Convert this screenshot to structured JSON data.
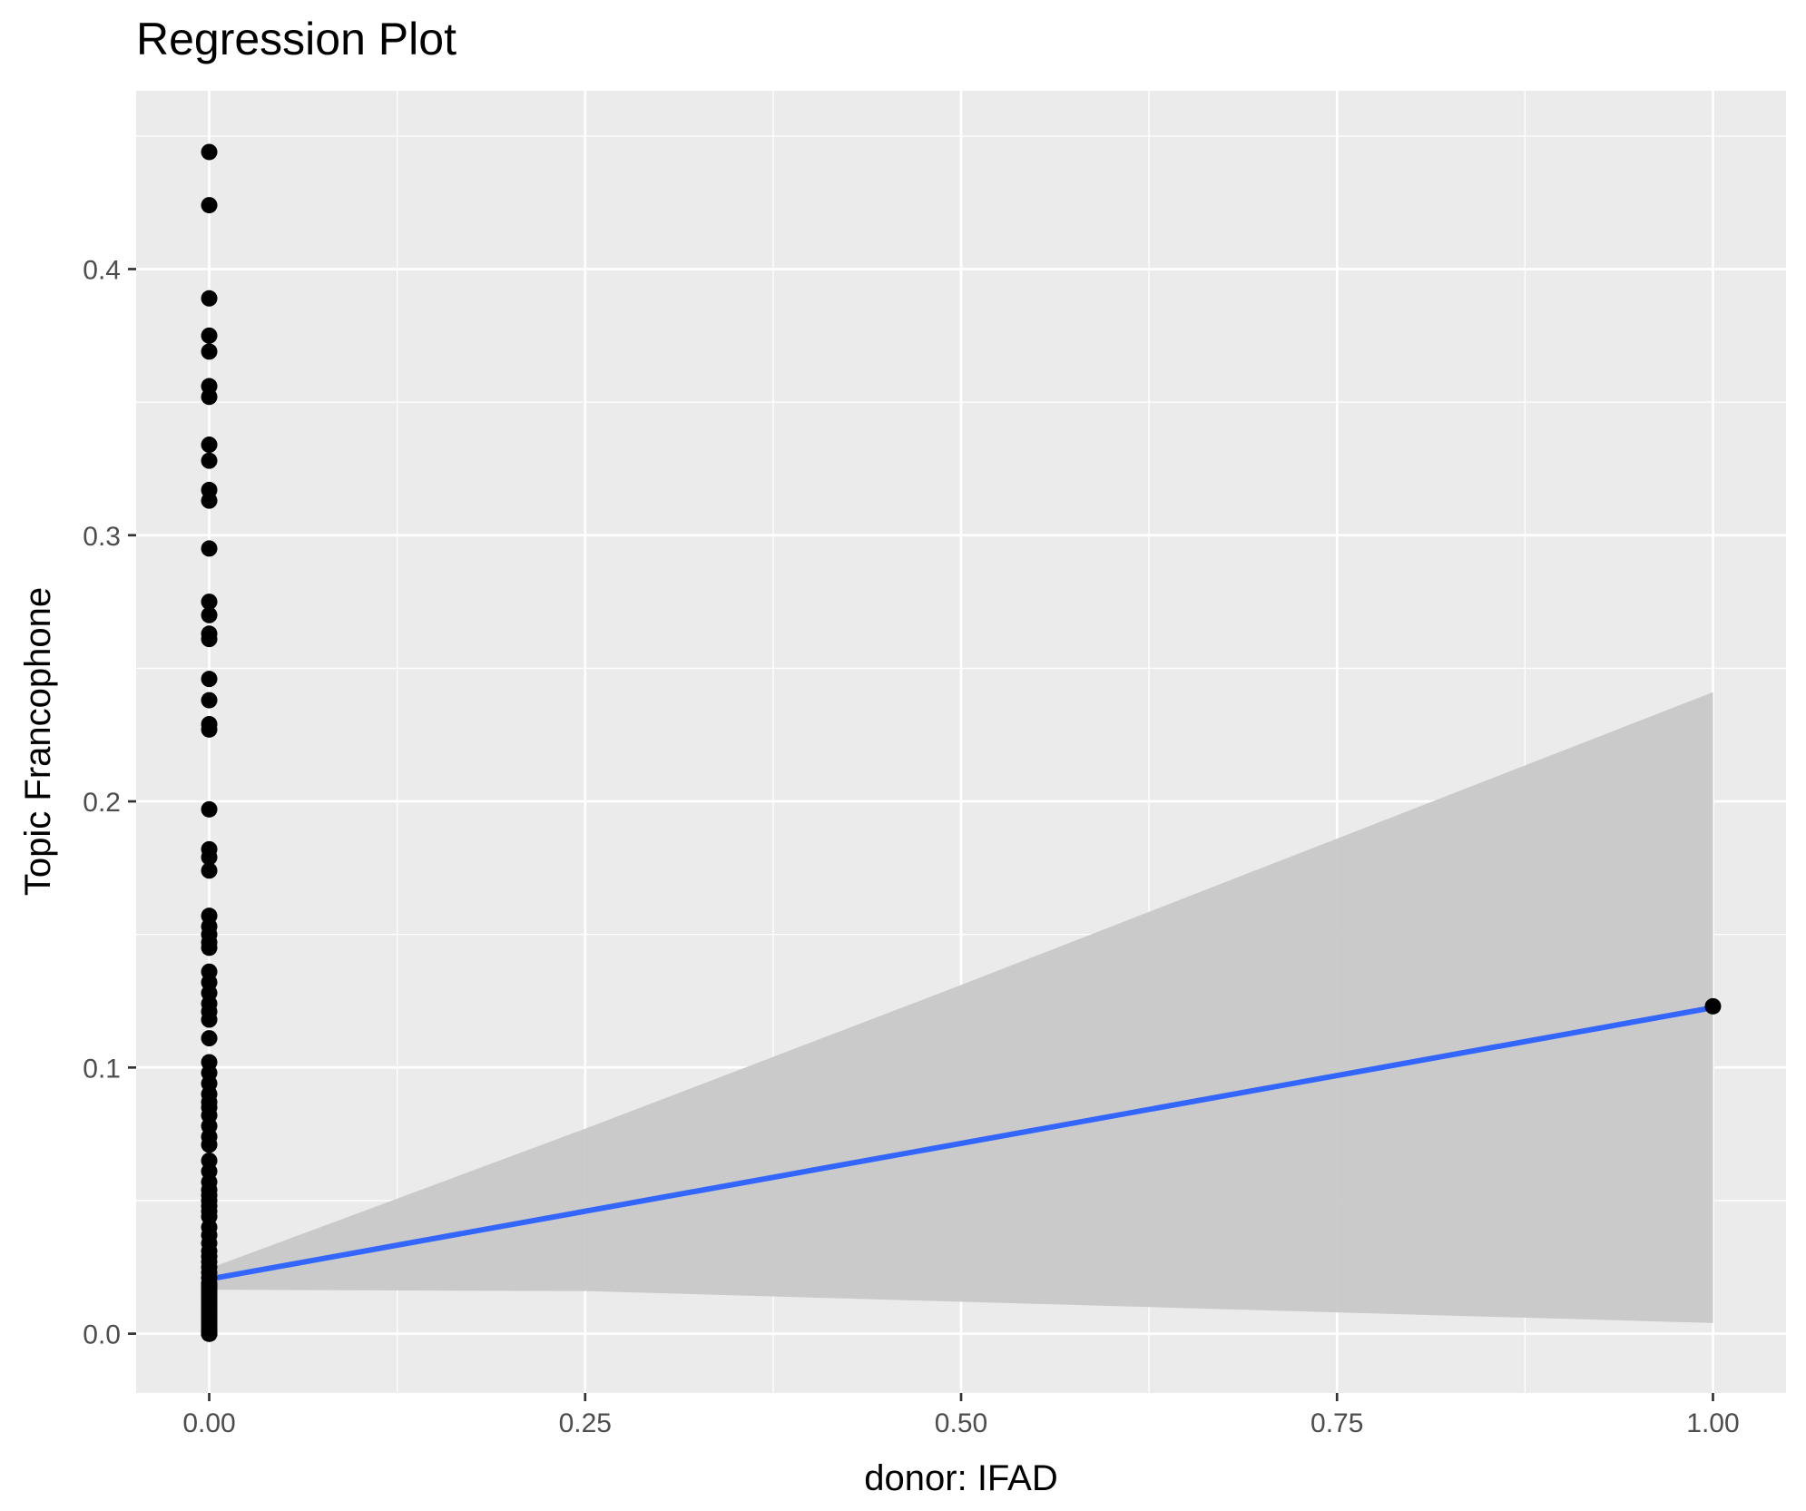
{
  "chart_data": {
    "type": "scatter",
    "title": "Regression Plot",
    "xlabel": "donor: IFAD",
    "ylabel": "Topic Francophone",
    "xlim": [
      -0.0486,
      1.0486
    ],
    "ylim": [
      -0.0223,
      0.467
    ],
    "x_ticks": [
      0.0,
      0.25,
      0.5,
      0.75,
      1.0
    ],
    "x_tick_labels": [
      "0.00",
      "0.25",
      "0.50",
      "0.75",
      "1.00"
    ],
    "y_ticks": [
      0.0,
      0.1,
      0.2,
      0.3,
      0.4
    ],
    "y_tick_labels": [
      "0.0",
      "0.1",
      "0.2",
      "0.3",
      "0.4"
    ],
    "grid": true,
    "points": {
      "x": [
        0,
        0,
        0,
        0,
        0,
        0,
        0,
        0,
        0,
        0,
        0,
        0,
        0,
        0,
        0,
        0,
        0,
        0,
        0,
        0,
        0,
        0,
        0,
        0,
        0,
        0,
        0,
        0,
        0,
        0,
        0,
        0,
        0,
        0,
        0,
        0,
        0,
        0,
        0,
        0,
        0,
        0,
        0,
        0,
        0,
        0,
        0,
        0,
        0,
        0,
        0,
        0,
        0,
        0,
        0,
        0,
        0,
        0,
        0,
        0,
        0,
        0,
        0,
        0,
        0,
        0,
        0,
        0,
        0,
        0,
        0,
        0,
        0,
        0,
        0,
        0,
        0,
        0,
        0,
        0,
        0,
        0,
        0,
        0,
        0,
        0,
        0,
        0,
        0,
        0,
        0,
        0,
        0,
        0,
        0,
        0,
        0,
        0,
        1
      ],
      "y": [
        0.444,
        0.424,
        0.389,
        0.375,
        0.369,
        0.356,
        0.352,
        0.334,
        0.328,
        0.317,
        0.313,
        0.295,
        0.275,
        0.27,
        0.263,
        0.261,
        0.246,
        0.238,
        0.229,
        0.227,
        0.197,
        0.182,
        0.179,
        0.174,
        0.157,
        0.153,
        0.15,
        0.147,
        0.145,
        0.136,
        0.132,
        0.128,
        0.124,
        0.121,
        0.118,
        0.111,
        0.102,
        0.098,
        0.094,
        0.09,
        0.087,
        0.085,
        0.082,
        0.078,
        0.074,
        0.071,
        0.065,
        0.061,
        0.057,
        0.054,
        0.052,
        0.05,
        0.048,
        0.046,
        0.044,
        0.04,
        0.037,
        0.034,
        0.031,
        0.029,
        0.027,
        0.025,
        0.023,
        0.021,
        0.019,
        0.018,
        0.017,
        0.016,
        0.015,
        0.014,
        0.013,
        0.012,
        0.011,
        0.01,
        0.009,
        0.008,
        0.007,
        0.006,
        0.005,
        0.004,
        0.003,
        0.002,
        0.001,
        0.0,
        0.0,
        0.0,
        0.0,
        0.0,
        0.0,
        0.0,
        0.0,
        0.0,
        0.0,
        0.0,
        0.0,
        0.0,
        0.0,
        0.0,
        0.123
      ]
    },
    "regression": {
      "x": [
        0,
        1
      ],
      "y": [
        0.0205,
        0.1225
      ]
    },
    "confidence_band": {
      "x": [
        0,
        0.25,
        0.5,
        0.75,
        1.0
      ],
      "lower": [
        0.0165,
        0.016,
        0.012,
        0.008,
        0.004
      ],
      "upper": [
        0.0245,
        0.077,
        0.131,
        0.186,
        0.241
      ]
    },
    "colors": {
      "panel": "#ebebeb",
      "grid": "#ffffff",
      "points": "#000000",
      "line": "#3366ff",
      "band": "#c8c8c8"
    }
  }
}
